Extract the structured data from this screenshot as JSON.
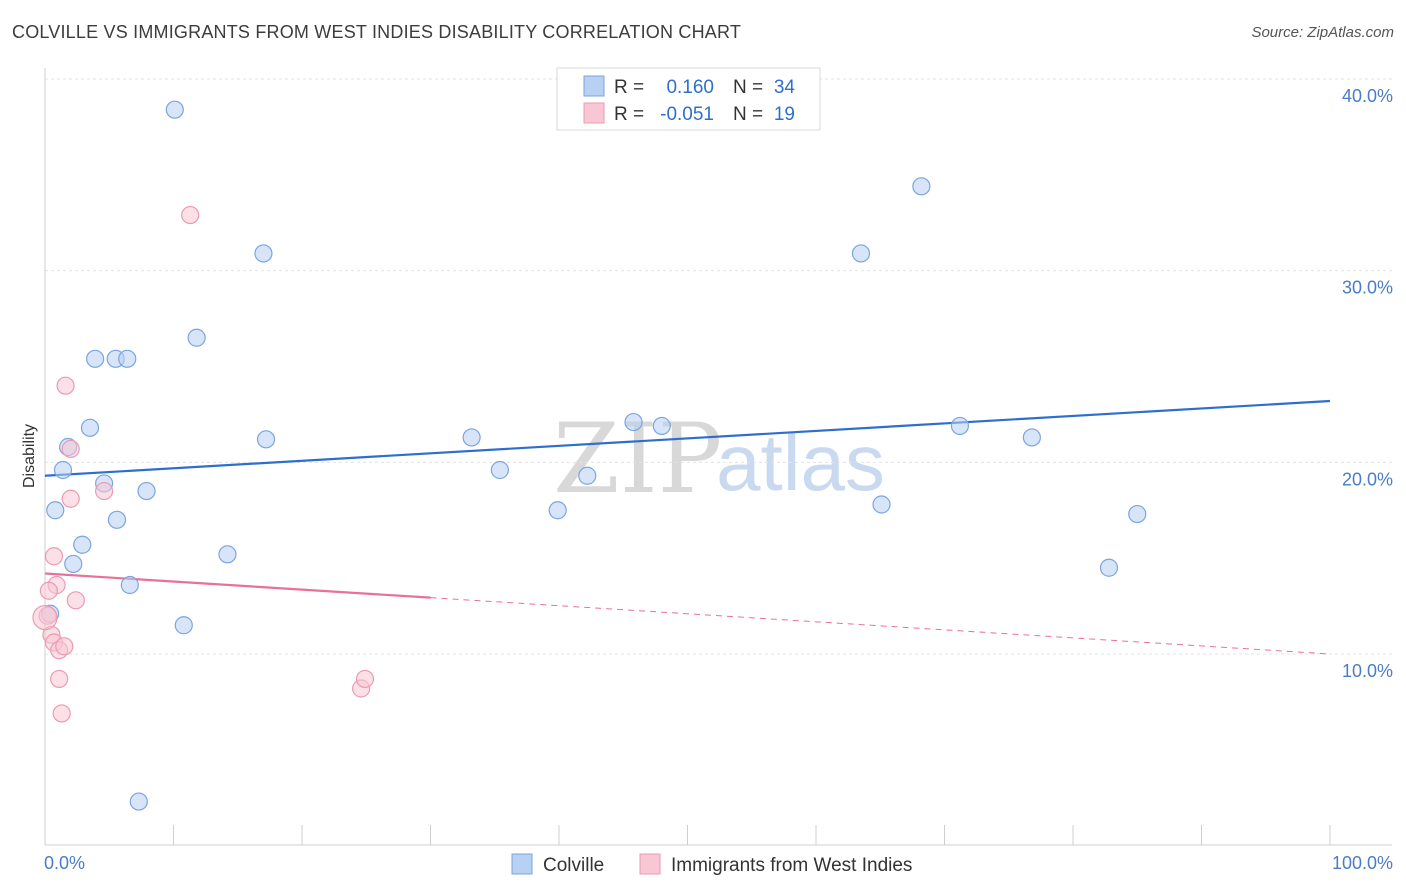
{
  "title": "COLVILLE VS IMMIGRANTS FROM WEST INDIES DISABILITY CORRELATION CHART",
  "source": "Source: ZipAtlas.com",
  "watermark": {
    "zip": "ZIP",
    "atlas": "atlas"
  },
  "legend": {
    "r_label": "R =",
    "n_label": "N =",
    "rows": [
      {
        "r": "0.160",
        "n": "34",
        "fill": "#b8d0f2",
        "stroke": "#7aa5e0"
      },
      {
        "r": "-0.051",
        "n": "19",
        "fill": "#f8c6d4",
        "stroke": "#ec9ab2"
      }
    ]
  },
  "bottom_legend": [
    "Colville",
    "Immigrants from West Indies"
  ],
  "chart_data": {
    "type": "scatter",
    "xlabel": "",
    "ylabel": "Disability",
    "xlim": [
      0,
      100
    ],
    "ylim": [
      0,
      40
    ],
    "x_tick_labels": [
      "0.0%",
      "100.0%"
    ],
    "y_ticks": [
      10,
      20,
      30,
      40
    ],
    "y_tick_labels": [
      "10.0%",
      "20.0%",
      "30.0%",
      "40.0%"
    ],
    "grid": true,
    "legend_position": "top-center",
    "series": [
      {
        "name": "Colville",
        "color": "#7aa5e0",
        "fill": "#b8d0f2",
        "line_color": "#2f6fcc",
        "trend": {
          "x": [
            0,
            100
          ],
          "y": [
            19.3,
            23.2
          ],
          "dashed_from": null
        },
        "points": [
          [
            10.1,
            38.4
          ],
          [
            17.0,
            30.9
          ],
          [
            11.8,
            26.5
          ],
          [
            3.9,
            25.4
          ],
          [
            5.5,
            25.4
          ],
          [
            6.4,
            25.4
          ],
          [
            3.5,
            21.8
          ],
          [
            1.8,
            20.8
          ],
          [
            17.2,
            21.2
          ],
          [
            1.4,
            19.6
          ],
          [
            4.6,
            18.9
          ],
          [
            7.9,
            18.5
          ],
          [
            0.8,
            17.5
          ],
          [
            5.6,
            17.0
          ],
          [
            2.9,
            15.7
          ],
          [
            2.2,
            14.7
          ],
          [
            14.2,
            15.2
          ],
          [
            6.6,
            13.6
          ],
          [
            10.8,
            11.5
          ],
          [
            0.4,
            12.1
          ],
          [
            7.3,
            2.3
          ],
          [
            33.2,
            21.3
          ],
          [
            35.4,
            19.6
          ],
          [
            39.9,
            17.5
          ],
          [
            42.2,
            19.3
          ],
          [
            45.8,
            22.1
          ],
          [
            48.0,
            21.9
          ],
          [
            63.5,
            30.9
          ],
          [
            68.2,
            34.4
          ],
          [
            65.1,
            17.8
          ],
          [
            71.2,
            21.9
          ],
          [
            76.8,
            21.3
          ],
          [
            82.8,
            14.5
          ],
          [
            85.0,
            17.3
          ]
        ]
      },
      {
        "name": "Immigrants from West Indies",
        "color": "#ec9ab2",
        "fill": "#f8c6d4",
        "line_color": "#e8709a",
        "trend": {
          "x": [
            0,
            100
          ],
          "y": [
            14.2,
            10.0
          ],
          "dashed_from": 30
        },
        "points": [
          [
            11.3,
            32.9
          ],
          [
            1.6,
            24.0
          ],
          [
            2.0,
            20.7
          ],
          [
            4.6,
            18.5
          ],
          [
            2.0,
            18.1
          ],
          [
            0.7,
            15.1
          ],
          [
            0.9,
            13.6
          ],
          [
            0.3,
            13.3
          ],
          [
            2.4,
            12.8
          ],
          [
            0.2,
            12.0
          ],
          [
            0.5,
            11.0
          ],
          [
            0.7,
            10.6
          ],
          [
            1.1,
            10.2
          ],
          [
            1.5,
            10.4
          ],
          [
            1.1,
            8.7
          ],
          [
            1.3,
            6.9
          ],
          [
            24.6,
            8.2
          ],
          [
            24.9,
            8.7
          ],
          [
            0.0,
            11.9
          ]
        ]
      }
    ]
  }
}
